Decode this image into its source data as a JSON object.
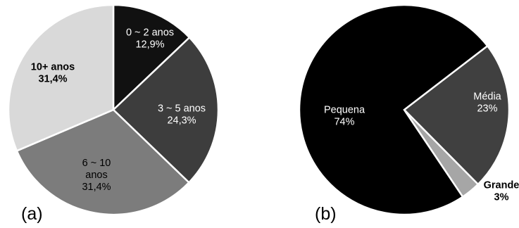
{
  "chart_data": [
    {
      "type": "pie",
      "panel_label": "(a)",
      "slices": [
        {
          "label_lines": [
            "0 ~ 2 anos",
            "12,9%"
          ],
          "value": 12.9,
          "color": "#111111",
          "text_color": "#ffffff",
          "text_weight": "normal"
        },
        {
          "label_lines": [
            "3 ~ 5 anos",
            "24,3%"
          ],
          "value": 24.3,
          "color": "#3d3d3d",
          "text_color": "#ffffff",
          "text_weight": "normal"
        },
        {
          "label_lines": [
            "6 ~ 10",
            "anos",
            "31,4%"
          ],
          "value": 31.4,
          "color": "#7c7c7c",
          "text_color": "#000000",
          "text_weight": "normal"
        },
        {
          "label_lines": [
            "10+ anos",
            "31,4%"
          ],
          "value": 31.4,
          "color": "#d9d9d9",
          "text_color": "#000000",
          "text_weight": "bold"
        }
      ]
    },
    {
      "type": "pie",
      "panel_label": "(b)",
      "slices": [
        {
          "label_lines": [
            "Média",
            "23%"
          ],
          "value": 23,
          "color": "#404040",
          "text_color": "#ffffff",
          "text_weight": "normal"
        },
        {
          "label_lines": [
            "Grande",
            "3%"
          ],
          "value": 3,
          "color": "#a6a6a6",
          "text_color": "#000000",
          "text_weight": "bold"
        },
        {
          "label_lines": [
            "Pequena",
            "74%"
          ],
          "value": 74,
          "color": "#000000",
          "text_color": "#ffffff",
          "text_weight": "normal"
        }
      ]
    }
  ]
}
